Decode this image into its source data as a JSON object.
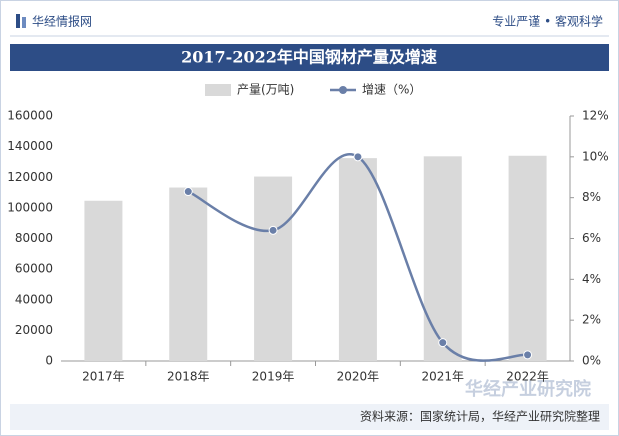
{
  "header": {
    "brand": "华经情报网",
    "slogan": "专业严谨 • 客观科学"
  },
  "chart_data": {
    "type": "bar_line",
    "title": "2017-2022年中国钢材产量及增速",
    "categories": [
      "2017年",
      "2018年",
      "2019年",
      "2020年",
      "2021年",
      "2022年"
    ],
    "series": [
      {
        "name": "产量(万吨)",
        "type": "bar",
        "color": "#d9d9d9",
        "values": [
          104642,
          113287,
          120457,
          132489,
          133667,
          134034
        ]
      },
      {
        "name": "增速（%）",
        "type": "line",
        "axis": "y2",
        "color": "#6a7fa8",
        "values": [
          null,
          8.3,
          6.4,
          10.0,
          0.9,
          0.3
        ]
      }
    ],
    "ylim": [
      0,
      160000
    ],
    "yticks": [
      0,
      20000,
      40000,
      60000,
      80000,
      100000,
      120000,
      140000,
      160000
    ],
    "y2lim": [
      0,
      12
    ],
    "y2ticks": [
      {
        "value": 0,
        "label": "0%"
      },
      {
        "value": 2,
        "label": "2%"
      },
      {
        "value": 4,
        "label": "4%"
      },
      {
        "value": 6,
        "label": "6%"
      },
      {
        "value": 8,
        "label": "8%"
      },
      {
        "value": 10,
        "label": "10%"
      },
      {
        "value": 12,
        "label": "12%"
      }
    ],
    "legend": "top",
    "source": "资料来源：国家统计局，华经产业研究院整理",
    "logo_text": "华经产业研究院"
  }
}
